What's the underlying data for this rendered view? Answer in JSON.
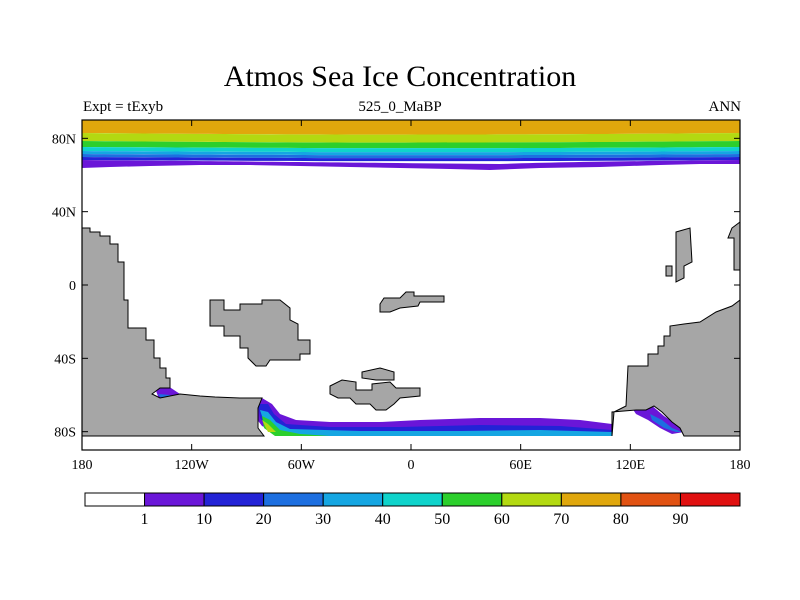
{
  "title": "Atmos Sea Ice Concentration",
  "subtitle_left": "Expt = tExyb",
  "subtitle_center": "525_0_MaBP",
  "subtitle_right": "ANN",
  "lat_ticks": [
    "80N",
    "40N",
    "0",
    "40S",
    "80S"
  ],
  "lon_ticks": [
    "180",
    "120W",
    "60W",
    "0",
    "60E",
    "120E",
    "180"
  ],
  "colorbar": {
    "labels": [
      "1",
      "10",
      "20",
      "30",
      "40",
      "50",
      "60",
      "70",
      "80",
      "90"
    ],
    "colors": [
      "#ffffff",
      "#6a16d8",
      "#2323d6",
      "#1d6fe0",
      "#15a6e2",
      "#0fd3cb",
      "#2ccf2c",
      "#b3d911",
      "#e0a70c",
      "#e15212",
      "#e01010"
    ]
  },
  "colors": {
    "land": "#a6a6a6",
    "ocean": "#ffffff"
  }
}
